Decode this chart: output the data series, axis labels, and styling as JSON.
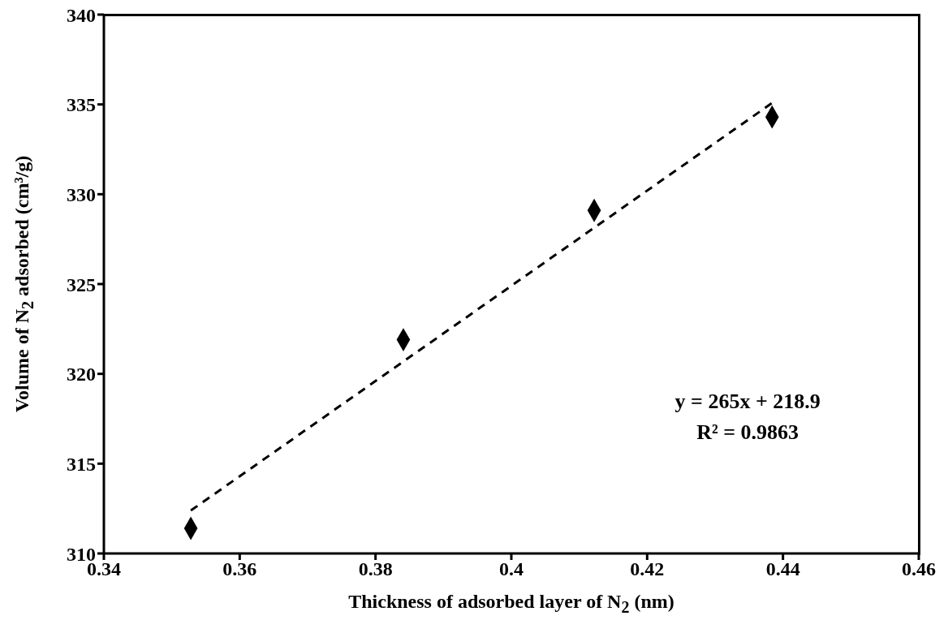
{
  "chart_data": {
    "type": "scatter",
    "xlabel": "Thickness of adsorbed layer of N$_{2}$ (nm)",
    "ylabel": "Volume of N$_{2}$ adsorbed (cm³/g)",
    "xlim": [
      0.34,
      0.46
    ],
    "xticks": [
      0.34,
      0.36,
      0.38,
      0.4,
      0.42,
      0.44,
      0.46
    ],
    "ylim": [
      310,
      340
    ],
    "yticks": [
      310,
      315,
      320,
      325,
      330,
      335,
      340
    ],
    "grid": false,
    "legend": false,
    "series": [
      {
        "color": "#000000",
        "marker": "diamond",
        "x": [
          0.3528,
          0.3841,
          0.4122,
          0.4384
        ],
        "values": [
          311.4,
          321.9,
          329.1,
          334.3
        ]
      },
      {
        "type": "line",
        "color": "#000000",
        "line_style": "dashed",
        "marker": "none",
        "x": [
          0.3528,
          0.4384
        ],
        "values": [
          312.39,
          335.08
        ]
      }
    ],
    "annotations": [
      "y = 265x + 218.9",
      "R² = 0.9863"
    ]
  }
}
